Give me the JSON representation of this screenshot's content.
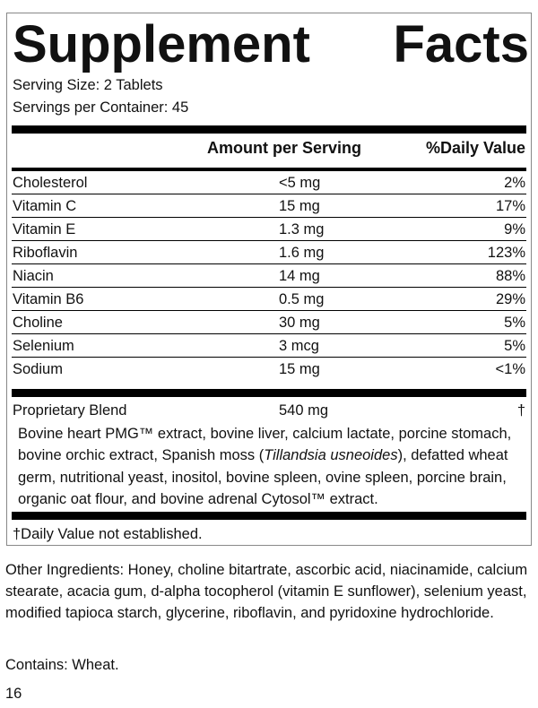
{
  "title_left": "Supplement",
  "title_right": "Facts",
  "serving_size": "Serving Size: 2 Tablets",
  "servings_per_container": "Servings per Container: 45",
  "header": {
    "amount": "Amount per Serving",
    "dv": "%Daily Value"
  },
  "rows": [
    {
      "name": "Cholesterol",
      "amount": "<5 mg",
      "dv": "2%"
    },
    {
      "name": "Vitamin C",
      "amount": "15 mg",
      "dv": "17%"
    },
    {
      "name": "Vitamin E",
      "amount": "1.3 mg",
      "dv": "9%"
    },
    {
      "name": "Riboflavin",
      "amount": "1.6 mg",
      "dv": "123%"
    },
    {
      "name": "Niacin",
      "amount": "14 mg",
      "dv": "88%"
    },
    {
      "name": "Vitamin B6",
      "amount": "0.5 mg",
      "dv": "29%"
    },
    {
      "name": "Choline",
      "amount": "30 mg",
      "dv": "5%"
    },
    {
      "name": "Selenium",
      "amount": "3 mcg",
      "dv": "5%"
    },
    {
      "name": "Sodium",
      "amount": "15 mg",
      "dv": "<1%"
    }
  ],
  "blend": {
    "name": "Proprietary Blend",
    "amount": "540 mg",
    "dv": "†",
    "text_a": "Bovine heart PMG™ extract, bovine liver, calcium lactate, porcine stomach, bovine orchic extract, Spanish moss (",
    "text_italic": "Tillandsia usneoides",
    "text_b": "), defatted wheat germ, nutritional yeast, inositol, bovine spleen, ovine spleen, porcine brain, organic oat flour, and bovine adrenal Cytosol™ extract."
  },
  "footnote": "†Daily Value not established.",
  "other_ingredients": "Other Ingredients: Honey, choline bitartrate, ascorbic acid, niacinamide, calcium stearate, acacia gum, d-alpha tocopherol (vitamin E sunflower), selenium yeast, modified tapioca starch, glycerine, riboflavin, and pyridoxine hydrochloride.",
  "contains": "Contains: Wheat.",
  "page_number": "16"
}
